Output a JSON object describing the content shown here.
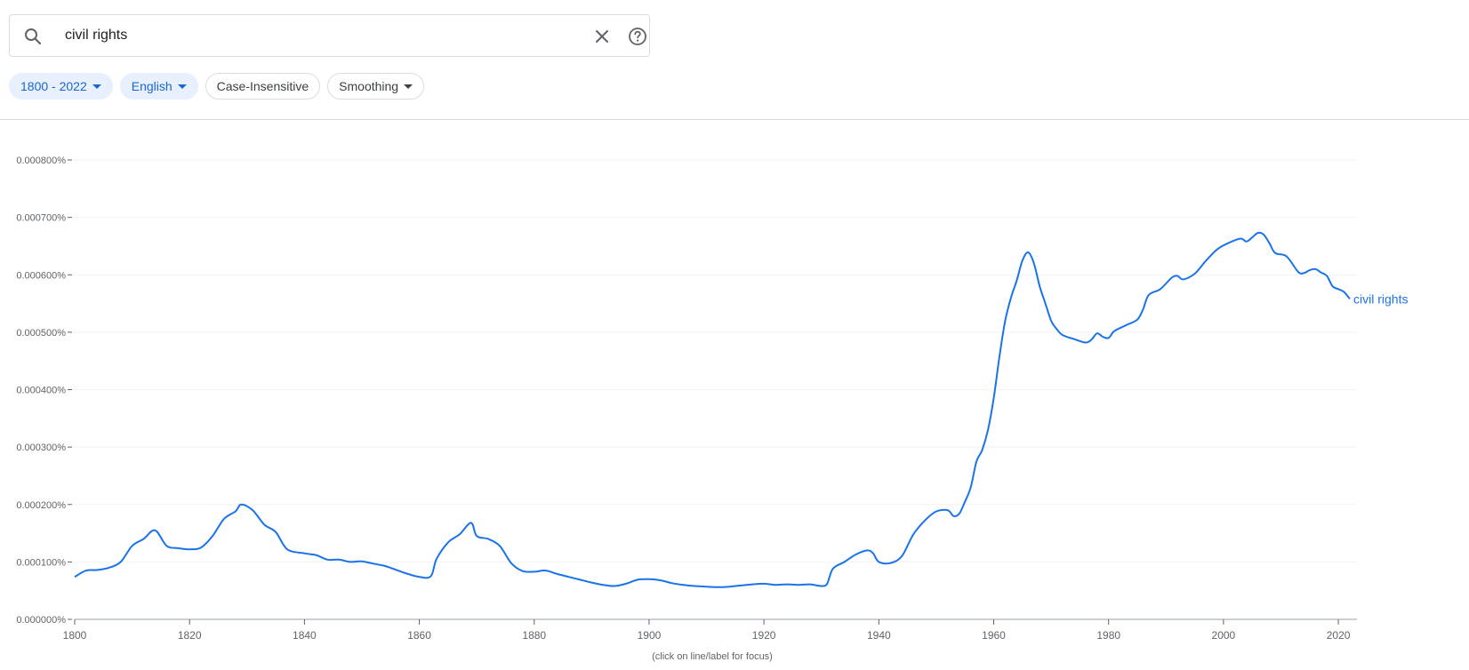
{
  "search": {
    "query": "civil rights"
  },
  "filters": [
    {
      "label": "1800 - 2022",
      "active": true,
      "dropdown": true
    },
    {
      "label": "English",
      "active": true,
      "dropdown": true
    },
    {
      "label": "Case-Insensitive",
      "active": false,
      "dropdown": false
    },
    {
      "label": "Smoothing",
      "active": false,
      "dropdown": true
    }
  ],
  "colors": {
    "accent": "#1a73e8",
    "chip_active_bg": "#e8f0fe",
    "chip_active_text": "#1967d2"
  },
  "chart_data": {
    "type": "line",
    "xlim": [
      1800,
      2022
    ],
    "ylim": [
      0,
      0.0008
    ],
    "grid": true,
    "x_ticks": [
      1800,
      1820,
      1840,
      1860,
      1880,
      1900,
      1920,
      1940,
      1960,
      1980,
      2000,
      2020
    ],
    "y_ticks": [
      "0.000000%",
      "0.000100%",
      "0.000200%",
      "0.000300%",
      "0.000400%",
      "0.000500%",
      "0.000600%",
      "0.000700%",
      "0.000800%"
    ],
    "footnote": "(click on line/label for focus)",
    "series": [
      {
        "name": "civil rights",
        "color": "#1a73e8",
        "points": [
          [
            1800,
            7.4e-05
          ],
          [
            1802,
            8.5e-05
          ],
          [
            1804,
            8.6e-05
          ],
          [
            1806,
            9e-05
          ],
          [
            1808,
            0.0001
          ],
          [
            1810,
            0.000128
          ],
          [
            1812,
            0.00014
          ],
          [
            1814,
            0.000155
          ],
          [
            1816,
            0.000128
          ],
          [
            1818,
            0.000124
          ],
          [
            1820,
            0.000122
          ],
          [
            1822,
            0.000125
          ],
          [
            1824,
            0.000145
          ],
          [
            1826,
            0.000175
          ],
          [
            1828,
            0.000188
          ],
          [
            1829,
            0.0002
          ],
          [
            1831,
            0.00019
          ],
          [
            1833,
            0.000165
          ],
          [
            1835,
            0.000152
          ],
          [
            1837,
            0.000122
          ],
          [
            1840,
            0.000115
          ],
          [
            1842,
            0.000112
          ],
          [
            1844,
            0.000104
          ],
          [
            1846,
            0.000104
          ],
          [
            1848,
            0.0001
          ],
          [
            1850,
            0.000101
          ],
          [
            1852,
            9.7e-05
          ],
          [
            1854,
            9.3e-05
          ],
          [
            1856,
            8.6e-05
          ],
          [
            1858,
            7.9e-05
          ],
          [
            1860,
            7.4e-05
          ],
          [
            1862,
            7.5e-05
          ],
          [
            1863,
            0.000105
          ],
          [
            1865,
            0.000134
          ],
          [
            1867,
            0.000148
          ],
          [
            1869,
            0.000168
          ],
          [
            1870,
            0.000145
          ],
          [
            1872,
            0.00014
          ],
          [
            1874,
            0.000128
          ],
          [
            1876,
            9.8e-05
          ],
          [
            1878,
            8.4e-05
          ],
          [
            1880,
            8.3e-05
          ],
          [
            1882,
            8.5e-05
          ],
          [
            1884,
            7.9e-05
          ],
          [
            1886,
            7.4e-05
          ],
          [
            1888,
            6.9e-05
          ],
          [
            1890,
            6.4e-05
          ],
          [
            1892,
            6e-05
          ],
          [
            1894,
            5.8e-05
          ],
          [
            1896,
            6.2e-05
          ],
          [
            1898,
            6.9e-05
          ],
          [
            1900,
            7e-05
          ],
          [
            1902,
            6.8e-05
          ],
          [
            1904,
            6.3e-05
          ],
          [
            1906,
            6e-05
          ],
          [
            1908,
            5.8e-05
          ],
          [
            1910,
            5.7e-05
          ],
          [
            1912,
            5.6e-05
          ],
          [
            1914,
            5.7e-05
          ],
          [
            1916,
            5.9e-05
          ],
          [
            1918,
            6.1e-05
          ],
          [
            1920,
            6.2e-05
          ],
          [
            1922,
            6e-05
          ],
          [
            1924,
            6.1e-05
          ],
          [
            1926,
            6e-05
          ],
          [
            1928,
            6.1e-05
          ],
          [
            1930,
            5.8e-05
          ],
          [
            1931,
            6.2e-05
          ],
          [
            1932,
            8.8e-05
          ],
          [
            1934,
            0.0001
          ],
          [
            1936,
            0.000113
          ],
          [
            1938,
            0.00012
          ],
          [
            1939,
            0.000115
          ],
          [
            1940,
            0.0001
          ],
          [
            1942,
            9.8e-05
          ],
          [
            1944,
            0.00011
          ],
          [
            1946,
            0.000148
          ],
          [
            1948,
            0.000172
          ],
          [
            1950,
            0.000188
          ],
          [
            1952,
            0.00019
          ],
          [
            1953,
            0.00018
          ],
          [
            1954,
            0.000184
          ],
          [
            1955,
            0.000205
          ],
          [
            1956,
            0.00023
          ],
          [
            1957,
            0.000275
          ],
          [
            1958,
            0.000295
          ],
          [
            1959,
            0.00033
          ],
          [
            1960,
            0.000385
          ],
          [
            1961,
            0.000458
          ],
          [
            1962,
            0.00052
          ],
          [
            1963,
            0.00056
          ],
          [
            1964,
            0.00059
          ],
          [
            1965,
            0.000625
          ],
          [
            1966,
            0.000639
          ],
          [
            1967,
            0.00062
          ],
          [
            1968,
            0.00058
          ],
          [
            1969,
            0.00055
          ],
          [
            1970,
            0.00052
          ],
          [
            1971,
            0.000505
          ],
          [
            1972,
            0.000495
          ],
          [
            1974,
            0.000488
          ],
          [
            1976,
            0.000482
          ],
          [
            1977,
            0.000487
          ],
          [
            1978,
            0.000498
          ],
          [
            1979,
            0.000492
          ],
          [
            1980,
            0.00049
          ],
          [
            1981,
            0.000502
          ],
          [
            1983,
            0.000512
          ],
          [
            1985,
            0.000522
          ],
          [
            1986,
            0.00054
          ],
          [
            1987,
            0.000565
          ],
          [
            1989,
            0.000575
          ],
          [
            1991,
            0.000595
          ],
          [
            1992,
            0.000598
          ],
          [
            1993,
            0.000592
          ],
          [
            1995,
            0.000602
          ],
          [
            1997,
            0.000625
          ],
          [
            1999,
            0.000645
          ],
          [
            2001,
            0.000656
          ],
          [
            2003,
            0.000663
          ],
          [
            2004,
            0.000658
          ],
          [
            2005,
            0.000665
          ],
          [
            2006,
            0.000673
          ],
          [
            2007,
            0.00067
          ],
          [
            2008,
            0.000655
          ],
          [
            2009,
            0.000638
          ],
          [
            2011,
            0.000632
          ],
          [
            2013,
            0.000605
          ],
          [
            2014,
            0.000603
          ],
          [
            2015,
            0.000608
          ],
          [
            2016,
            0.00061
          ],
          [
            2017,
            0.000604
          ],
          [
            2018,
            0.000598
          ],
          [
            2019,
            0.00058
          ],
          [
            2020,
            0.000575
          ],
          [
            2021,
            0.00057
          ],
          [
            2022,
            0.000558
          ]
        ]
      }
    ]
  }
}
